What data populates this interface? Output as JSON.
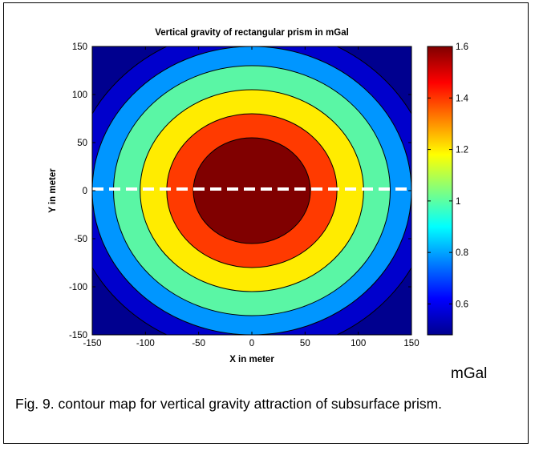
{
  "chart_data": {
    "type": "heatmap",
    "subtype": "filled-contour",
    "title": "Vertical gravity of rectangular prism in mGal",
    "xlabel": "X in meter",
    "ylabel": "Y in meter",
    "xlim": [
      -150,
      150
    ],
    "ylim": [
      -150,
      150
    ],
    "xticks": [
      "-150",
      "-100",
      "-50",
      "0",
      "50",
      "100",
      "150"
    ],
    "yticks": [
      "150",
      "100",
      "50",
      "0",
      "-50",
      "-100",
      "-150"
    ],
    "contour_levels": [
      {
        "value": 0.65,
        "radius": 170,
        "color": "#0000cc"
      },
      {
        "value": 0.8,
        "radius": 150,
        "color": "#0096ff"
      },
      {
        "value": 1.0,
        "radius": 130,
        "color": "#5af6a5"
      },
      {
        "value": 1.2,
        "radius": 105,
        "color": "#ffec00"
      },
      {
        "value": 1.4,
        "radius": 80,
        "color": "#ff3a00"
      },
      {
        "value": 1.6,
        "radius": 55,
        "color": "#800000"
      }
    ],
    "colorbar": {
      "min": 0.48,
      "max": 1.6,
      "ticks": [
        "1.6",
        "1.4",
        "1.2",
        "1",
        "0.8",
        "0.6"
      ],
      "unit": "mGal"
    },
    "profile_line": {
      "y": 0,
      "style": "dashed",
      "color": "#ffffff"
    },
    "grid": false
  },
  "caption": "Fig. 9. contour map for vertical gravity attraction of subsurface prism."
}
